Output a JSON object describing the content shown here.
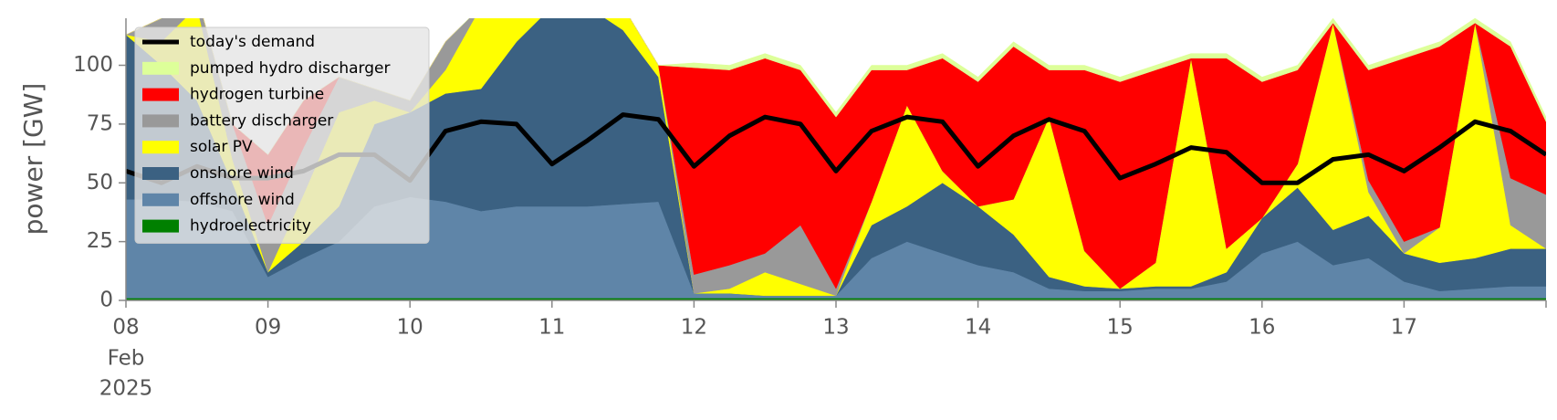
{
  "chart_data": {
    "type": "stacked_area",
    "ylabel": "power [GW]",
    "x": [
      8,
      8.25,
      8.5,
      8.75,
      9,
      9.25,
      9.5,
      9.75,
      10,
      10.25,
      10.5,
      10.75,
      11,
      11.25,
      11.5,
      11.75,
      12,
      12.25,
      12.5,
      12.75,
      13,
      13.25,
      13.5,
      13.75,
      14,
      14.25,
      14.5,
      14.75,
      15,
      15.25,
      15.5,
      15.75,
      16,
      16.25,
      16.5,
      16.75,
      17,
      17.25,
      17.5,
      17.75,
      18
    ],
    "xlim": [
      8,
      18
    ],
    "xticks": [
      {
        "value": 8,
        "label": "08"
      },
      {
        "value": 9,
        "label": "09"
      },
      10,
      11,
      12,
      13,
      14,
      15,
      16,
      17
    ],
    "xtick_month": "Feb",
    "xtick_year": "2025",
    "ylim": [
      0,
      120
    ],
    "yticks": [
      0,
      25,
      50,
      75,
      100
    ],
    "legend": "upper left",
    "series": [
      {
        "name": "hydroelectricity",
        "color": "#008000",
        "values": [
          1,
          1,
          1,
          1,
          1,
          1,
          1,
          1,
          1,
          1,
          1,
          1,
          1,
          1,
          1,
          1,
          1,
          1,
          1,
          1,
          1,
          1,
          1,
          1,
          1,
          1,
          1,
          1,
          1,
          1,
          1,
          1,
          1,
          1,
          1,
          1,
          1,
          1,
          1,
          1,
          1
        ]
      },
      {
        "name": "offshore wind",
        "color": "#5f85a8",
        "values": [
          42,
          42,
          41,
          37,
          9,
          17,
          24,
          39,
          43,
          41,
          37,
          39,
          39,
          39,
          40,
          41,
          2,
          2,
          1,
          1,
          1,
          17,
          24,
          19,
          14,
          11,
          4,
          3,
          3,
          4,
          4,
          7,
          19,
          24,
          14,
          17,
          7,
          3,
          4,
          5,
          5
        ]
      },
      {
        "name": "onshore wind",
        "color": "#3b6182",
        "values": [
          70,
          57,
          43,
          12,
          2,
          7,
          15,
          35,
          36,
          46,
          52,
          70,
          85,
          85,
          74,
          53,
          0,
          0,
          0,
          0,
          0,
          14,
          15,
          30,
          25,
          16,
          5,
          2,
          1,
          1,
          1,
          4,
          15,
          23,
          15,
          18,
          12,
          12,
          13,
          16,
          16
        ]
      },
      {
        "name": "solar PV",
        "color": "#ffff00",
        "values": [
          0,
          10,
          40,
          10,
          0,
          20,
          40,
          10,
          0,
          10,
          35,
          15,
          0,
          5,
          10,
          5,
          0,
          2,
          10,
          5,
          0,
          10,
          43,
          5,
          0,
          15,
          68,
          15,
          0,
          10,
          97,
          10,
          0,
          10,
          88,
          10,
          0,
          15,
          100,
          10,
          0
        ]
      },
      {
        "name": "battery discharger",
        "color": "#999999",
        "values": [
          0,
          10,
          5,
          15,
          20,
          20,
          15,
          5,
          5,
          12,
          0,
          0,
          0,
          0,
          0,
          0,
          8,
          10,
          8,
          25,
          3,
          0,
          0,
          0,
          0,
          0,
          0,
          0,
          0,
          0,
          0,
          0,
          0,
          0,
          0,
          5,
          5,
          0,
          0,
          20,
          23
        ]
      },
      {
        "name": "hydrogen turbine",
        "color": "#ff0000",
        "values": [
          0,
          0,
          0,
          0,
          30,
          20,
          0,
          0,
          0,
          0,
          0,
          0,
          0,
          0,
          0,
          0,
          88,
          83,
          83,
          66,
          73,
          56,
          15,
          48,
          53,
          65,
          20,
          77,
          88,
          82,
          0,
          81,
          58,
          40,
          0,
          47,
          78,
          77,
          0,
          56,
          31
        ]
      },
      {
        "name": "pumped hydro discharger",
        "color": "#ddff99",
        "values": [
          0,
          0,
          0,
          0,
          0,
          0,
          0,
          0,
          0,
          0,
          0,
          0,
          0,
          0,
          0,
          0,
          2,
          2,
          2,
          2,
          2,
          2,
          2,
          2,
          2,
          2,
          2,
          2,
          2,
          2,
          2,
          2,
          2,
          2,
          2,
          2,
          2,
          2,
          2,
          2,
          2
        ]
      }
    ],
    "demand": {
      "name": "today's demand",
      "color": "#000000",
      "values": [
        55,
        50,
        57,
        52,
        52,
        55,
        62,
        62,
        51,
        72,
        76,
        75,
        58,
        68,
        79,
        77,
        57,
        70,
        78,
        75,
        55,
        72,
        78,
        76,
        57,
        70,
        77,
        72,
        52,
        58,
        65,
        63,
        50,
        50,
        60,
        62,
        55,
        65,
        76,
        72,
        62
      ]
    }
  }
}
